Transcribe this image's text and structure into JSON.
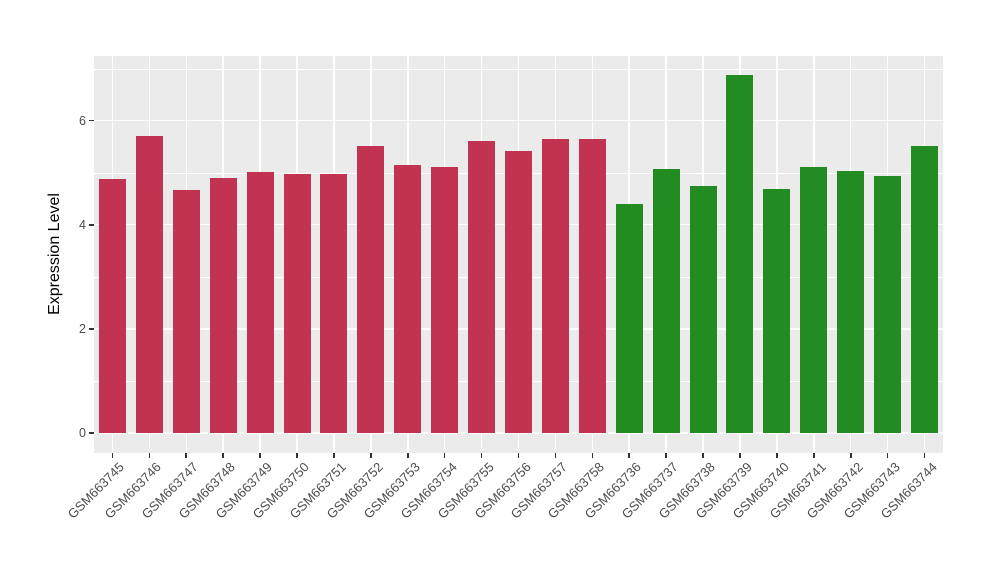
{
  "chart_data": {
    "type": "bar",
    "title": "",
    "xlabel": "",
    "ylabel": "Expression Level",
    "ylim": [
      -0.35,
      7.25
    ],
    "yticks": [
      0,
      2,
      4,
      6
    ],
    "ytick_labels": [
      "0",
      "2",
      "4",
      "6"
    ],
    "minor_gridlines": [
      1,
      3,
      5,
      7
    ],
    "grid": true,
    "legend_position": "none",
    "panel_background": "#EBEBEB",
    "gridline_color": "#FFFFFF",
    "axis_text_color": "#4D4D4D",
    "axis_title_color": "#000000",
    "group_colors": {
      "group1": "#C23351",
      "group2": "#228B22"
    },
    "categories": [
      "GSM663745",
      "GSM663746",
      "GSM663747",
      "GSM663748",
      "GSM663749",
      "GSM663750",
      "GSM663751",
      "GSM663752",
      "GSM663753",
      "GSM663754",
      "GSM663755",
      "GSM663756",
      "GSM663757",
      "GSM663758",
      "GSM663736",
      "GSM663737",
      "GSM663738",
      "GSM663739",
      "GSM663740",
      "GSM663741",
      "GSM663742",
      "GSM663743",
      "GSM663744"
    ],
    "values": [
      4.88,
      5.7,
      4.67,
      4.9,
      5.01,
      4.97,
      4.98,
      5.52,
      5.14,
      5.1,
      5.6,
      5.42,
      5.65,
      5.65,
      4.4,
      5.08,
      4.75,
      6.87,
      4.68,
      5.1,
      5.03,
      4.94,
      5.52
    ],
    "bar_colors": [
      "#C23351",
      "#C23351",
      "#C23351",
      "#C23351",
      "#C23351",
      "#C23351",
      "#C23351",
      "#C23351",
      "#C23351",
      "#C23351",
      "#C23351",
      "#C23351",
      "#C23351",
      "#C23351",
      "#228B22",
      "#228B22",
      "#228B22",
      "#228B22",
      "#228B22",
      "#228B22",
      "#228B22",
      "#228B22",
      "#228B22"
    ]
  }
}
